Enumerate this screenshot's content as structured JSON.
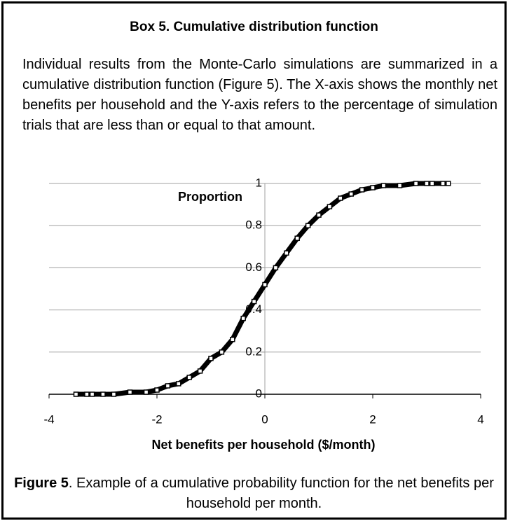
{
  "box": {
    "title": "Box 5. Cumulative distribution function",
    "paragraph": "Individual results from the Monte-Carlo simulations are summarized in a cumulative distribution function (Figure 5). The X-axis shows the monthly net benefits per household and the Y-axis refers to the percentage of simulation trials that are less than or equal to that amount."
  },
  "chart_data": {
    "type": "scatter",
    "y_label": "Proportion",
    "x_label": "Net benefits per household ($/month)",
    "x": [
      -3.5,
      -3.3,
      -3.2,
      -3.0,
      -2.8,
      -2.5,
      -2.2,
      -2.0,
      -1.8,
      -1.6,
      -1.4,
      -1.2,
      -1.0,
      -0.8,
      -0.6,
      -0.4,
      -0.2,
      0,
      0.2,
      0.4,
      0.6,
      0.8,
      1.0,
      1.2,
      1.4,
      1.6,
      1.8,
      2.0,
      2.2,
      2.5,
      2.8,
      3.0,
      3.1,
      3.3,
      3.4
    ],
    "values": [
      0,
      0,
      0,
      0,
      0,
      0.01,
      0.01,
      0.02,
      0.04,
      0.05,
      0.08,
      0.11,
      0.17,
      0.2,
      0.26,
      0.36,
      0.44,
      0.52,
      0.6,
      0.67,
      0.74,
      0.8,
      0.85,
      0.89,
      0.93,
      0.95,
      0.97,
      0.98,
      0.99,
      0.99,
      1,
      1,
      1,
      1,
      1
    ],
    "color": "#000000",
    "xlim": [
      -4,
      4
    ],
    "xticks": [
      -4,
      -2,
      0,
      2,
      4
    ],
    "ylim": [
      0,
      1
    ],
    "yticks": [
      0,
      0.2,
      0.4,
      0.6,
      0.8,
      1
    ],
    "grid": true
  },
  "caption": {
    "label": "Figure 5",
    "text": ". Example of a cumulative probability function for the net benefits per household per month."
  }
}
